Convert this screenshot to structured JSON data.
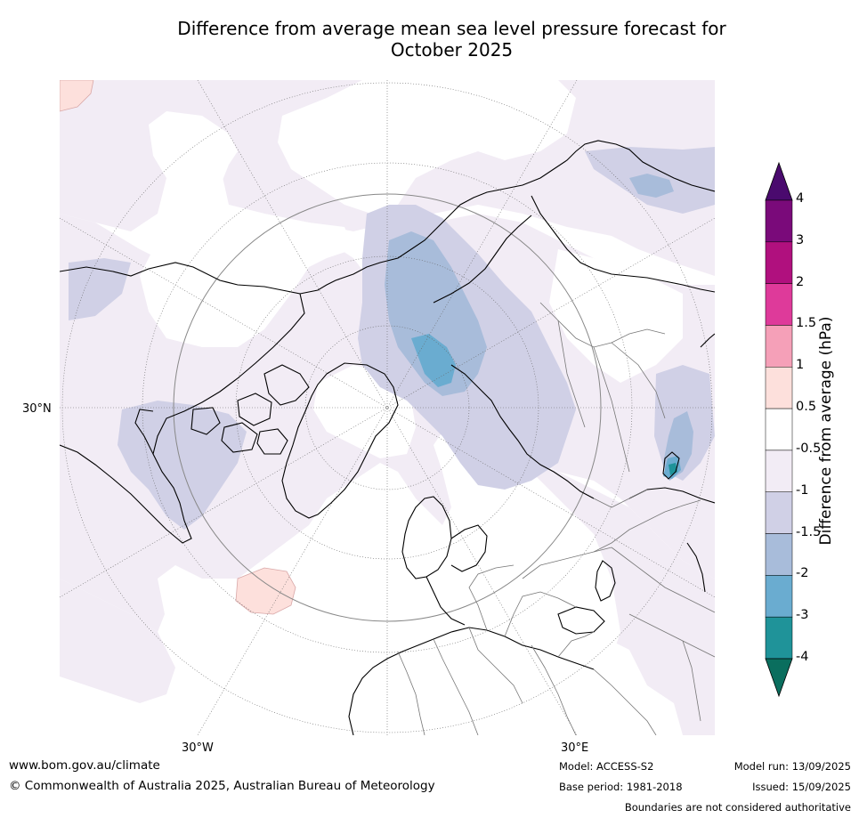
{
  "title_line1": "Difference from average mean sea level pressure forecast for",
  "title_line2": "October 2025",
  "map_labels": {
    "lat_30n": "30°N",
    "lon_30w": "30°W",
    "lon_30e": "30°E"
  },
  "colorbar": {
    "label": "Difference from average (hPa)",
    "ticks": [
      "4",
      "3",
      "2",
      "1.5",
      "1",
      "0.5",
      "-0.5",
      "-1",
      "-1.5",
      "-2",
      "-3",
      "-4"
    ],
    "colors": [
      "#7a0a7a",
      "#b0107e",
      "#de3a9a",
      "#f5a0b8",
      "#fde0dc",
      "#ffffff",
      "#f2ecf5",
      "#d0d0e6",
      "#a8bcda",
      "#6aacd0",
      "#1f9399"
    ],
    "over_color": "#4a0a6e",
    "under_color": "#0a6e5e"
  },
  "footer": {
    "url": "www.bom.gov.au/climate",
    "copyright": "© Commonwealth of Australia 2025, Australian Bureau of Meteorology",
    "model": "Model: ACCESS-S2",
    "base_period": "Base period: 1981-2018",
    "model_run": "Model run: 13/09/2025",
    "issued": "Issued: 15/09/2025",
    "disclaimer": "Boundaries are not considered authoritative"
  }
}
